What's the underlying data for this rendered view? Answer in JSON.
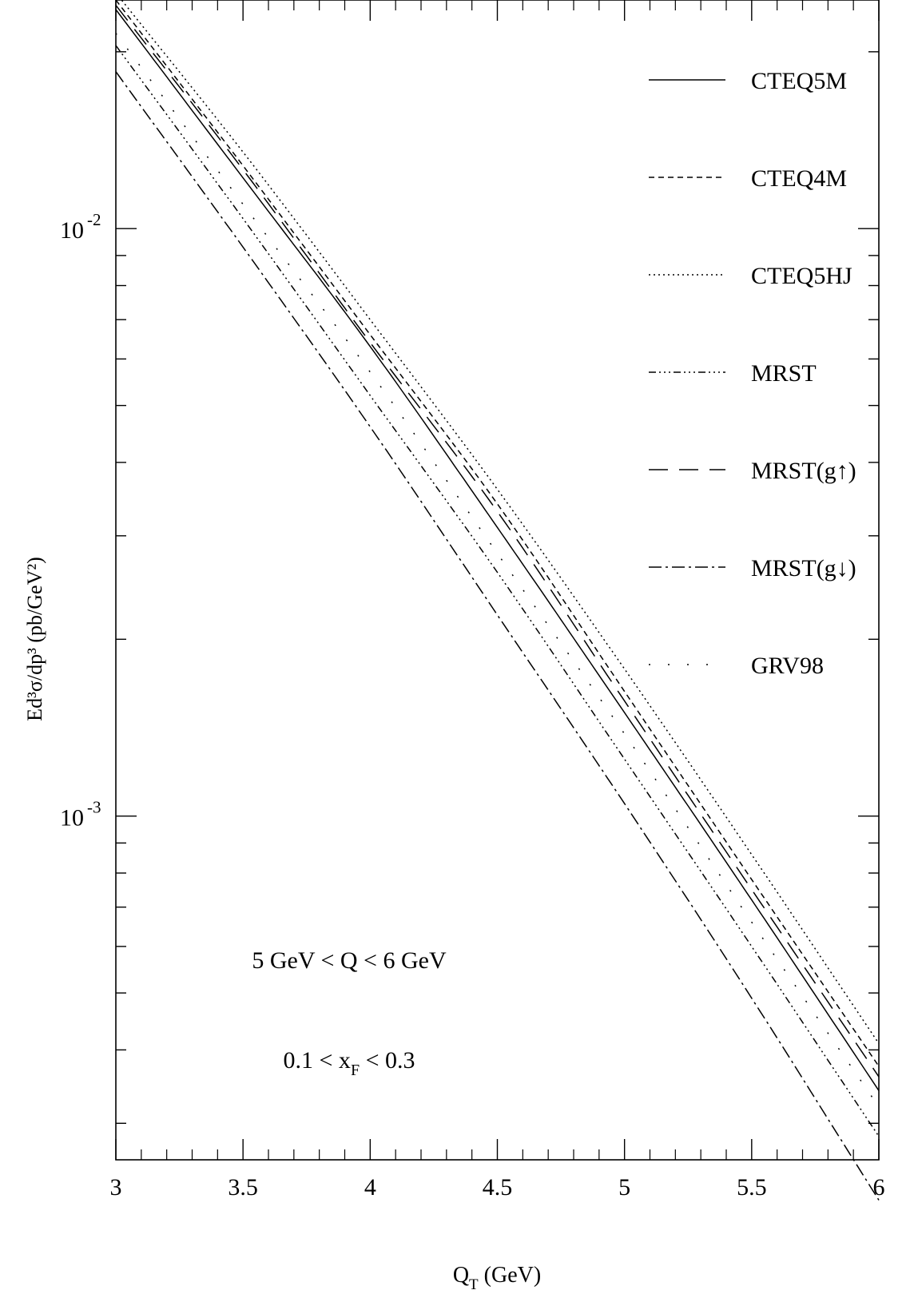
{
  "chart_data": {
    "type": "line",
    "title": "",
    "xlabel": {
      "main": "Q",
      "sub": "T",
      "tail": " (GeV)"
    },
    "ylabel": "Ed³σ/dp³ (pb/GeV²)",
    "xlim": [
      3,
      6
    ],
    "ylim": [
      0.00026,
      0.0245
    ],
    "yscale": "log",
    "grid": false,
    "legend_position": "top-right",
    "x_ticks": [
      "3",
      "3.5",
      "4",
      "4.5",
      "5",
      "5.5",
      "6"
    ],
    "x_tick_values": [
      3,
      3.5,
      4,
      4.5,
      5,
      5.5,
      6
    ],
    "y_ticks": [
      {
        "value": 0.01,
        "base": "10",
        "exp": "-2"
      },
      {
        "value": 0.001,
        "base": "10",
        "exp": "-3"
      }
    ],
    "annotations": [
      {
        "id": "q-range",
        "text": "5 GeV < Q < 6 GeV"
      },
      {
        "id": "xf-range",
        "pre": "0.1 < x",
        "sub": "F",
        "post": " < 0.3"
      }
    ],
    "x": [
      3.0,
      3.5,
      4.0,
      4.5,
      5.0,
      5.5,
      6.0
    ],
    "series": [
      {
        "name": "CTEQ5M",
        "style": "solid",
        "values": [
          0.0236,
          0.0122,
          0.0063,
          0.0031,
          0.0015,
          0.00072,
          0.000341
        ]
      },
      {
        "name": "CTEQ4M",
        "style": "dashed",
        "values": [
          0.0245,
          0.0128,
          0.0066,
          0.0034,
          0.00163,
          0.00078,
          0.000375
        ]
      },
      {
        "name": "CTEQ5HJ",
        "style": "dotted",
        "values": [
          0.0252,
          0.0135,
          0.007,
          0.0036,
          0.00178,
          0.00086,
          0.00041
        ]
      },
      {
        "name": "MRST",
        "style": "dashdot3",
        "values": [
          0.0205,
          0.0104,
          0.0052,
          0.0026,
          0.00125,
          0.0006,
          0.000285
        ]
      },
      {
        "name": "MRST(g↑)",
        "style": "longdash",
        "values": [
          0.024,
          0.0126,
          0.0064,
          0.0033,
          0.00157,
          0.00075,
          0.00036
        ]
      },
      {
        "name": "MRST(g↓)",
        "style": "dashdot",
        "values": [
          0.0185,
          0.0093,
          0.0046,
          0.0022,
          0.00105,
          0.00049,
          0.000222
        ]
      },
      {
        "name": "GRV98",
        "style": "sparsedot",
        "values": [
          0.0215,
          0.011,
          0.0057,
          0.0028,
          0.00138,
          0.00066,
          0.00032
        ]
      }
    ]
  }
}
